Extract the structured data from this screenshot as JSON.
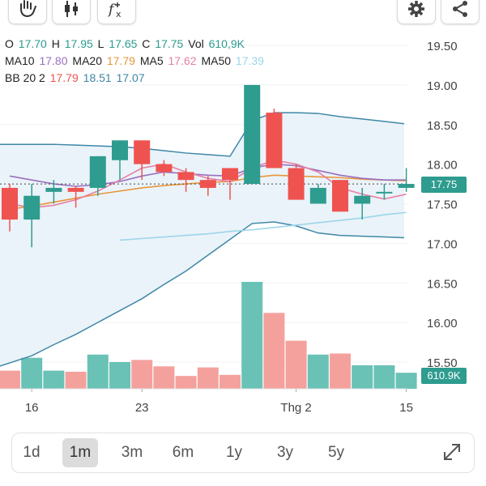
{
  "toolbar": {
    "left_icons": [
      "hand-icon",
      "candlestick-icon",
      "function-icon"
    ],
    "right_icons": [
      "gear-icon",
      "share-icon"
    ]
  },
  "legend": {
    "o_label": "O",
    "o_value": "17.70",
    "h_label": "H",
    "h_value": "17.95",
    "l_label": "L",
    "l_value": "17.65",
    "c_label": "C",
    "c_value": "17.75",
    "vol_label": "Vol",
    "vol_value": "610,9K",
    "ma10_label": "MA10",
    "ma10_value": "17.80",
    "ma20_label": "MA20",
    "ma20_value": "17.79",
    "ma5_label": "MA5",
    "ma5_value": "17.62",
    "ma50_label": "MA50",
    "ma50_value": "17.39",
    "bb_label": "BB 20 2",
    "bb_mid": "17.79",
    "bb_upper": "18.51",
    "bb_lower": "17.07"
  },
  "price_tag": "17.75",
  "volume_tag": "610.9K",
  "timeframes": [
    "1d",
    "1m",
    "3m",
    "6m",
    "1y",
    "3y",
    "5y"
  ],
  "active_timeframe": "1m",
  "colors": {
    "up": "#2e9c8f",
    "down": "#ef5350",
    "vol_up": "#69c2b5",
    "vol_down": "#f4a19d",
    "ma5": "#e77fa4",
    "ma10": "#9a6fbf",
    "ma20": "#e8963a",
    "ma50": "#9cd5ea",
    "bb_line": "#3f87a6",
    "bb_fill": "#eaf3f9"
  },
  "chart_data": {
    "type": "candlestick",
    "y_ticks": [
      "19.50",
      "19.00",
      "18.50",
      "18.00",
      "17.50",
      "17.00",
      "16.50",
      "16.00",
      "15.50"
    ],
    "ylim": [
      15.5,
      19.5
    ],
    "x_ticks": [
      {
        "label": "16",
        "index": 1
      },
      {
        "label": "23",
        "index": 6
      },
      {
        "label": "Thg 2",
        "index": 13
      },
      {
        "label": "15",
        "index": 18
      }
    ],
    "candles": [
      {
        "o": 17.7,
        "h": 17.75,
        "l": 17.15,
        "c": 17.3
      },
      {
        "o": 17.3,
        "h": 17.75,
        "l": 16.95,
        "c": 17.6
      },
      {
        "o": 17.65,
        "h": 17.8,
        "l": 17.5,
        "c": 17.7
      },
      {
        "o": 17.7,
        "h": 17.72,
        "l": 17.45,
        "c": 17.65
      },
      {
        "o": 17.7,
        "h": 18.1,
        "l": 17.6,
        "c": 18.1
      },
      {
        "o": 18.05,
        "h": 18.3,
        "l": 17.8,
        "c": 18.3
      },
      {
        "o": 18.3,
        "h": 18.3,
        "l": 17.8,
        "c": 18.0
      },
      {
        "o": 18.0,
        "h": 18.05,
        "l": 17.85,
        "c": 17.9
      },
      {
        "o": 17.9,
        "h": 17.95,
        "l": 17.65,
        "c": 17.8
      },
      {
        "o": 17.8,
        "h": 17.85,
        "l": 17.6,
        "c": 17.7
      },
      {
        "o": 17.95,
        "h": 17.95,
        "l": 17.55,
        "c": 17.8
      },
      {
        "o": 17.75,
        "h": 19.0,
        "l": 17.75,
        "c": 19.0
      },
      {
        "o": 18.65,
        "h": 18.7,
        "l": 17.95,
        "c": 17.95
      },
      {
        "o": 17.95,
        "h": 18.0,
        "l": 17.55,
        "c": 17.55
      },
      {
        "o": 17.5,
        "h": 17.75,
        "l": 17.5,
        "c": 17.7
      },
      {
        "o": 17.8,
        "h": 17.8,
        "l": 17.4,
        "c": 17.4
      },
      {
        "o": 17.5,
        "h": 17.7,
        "l": 17.3,
        "c": 17.6
      },
      {
        "o": 17.65,
        "h": 17.75,
        "l": 17.55,
        "c": 17.65
      },
      {
        "o": 17.7,
        "h": 17.95,
        "l": 17.65,
        "c": 17.75
      }
    ],
    "volume_relative": [
      0.17,
      0.29,
      0.17,
      0.16,
      0.32,
      0.25,
      0.27,
      0.21,
      0.12,
      0.2,
      0.13,
      1.0,
      0.71,
      0.45,
      0.32,
      0.33,
      0.22,
      0.22,
      0.15
    ],
    "ma5": [
      17.5,
      17.45,
      17.48,
      17.55,
      17.66,
      17.8,
      17.95,
      18.0,
      17.9,
      17.82,
      17.78,
      17.95,
      18.05,
      18.0,
      17.9,
      17.7,
      17.62,
      17.56,
      17.62
    ],
    "ma10": [
      17.85,
      17.8,
      17.75,
      17.72,
      17.74,
      17.78,
      17.85,
      17.9,
      17.88,
      17.86,
      17.85,
      17.95,
      18.0,
      17.98,
      17.92,
      17.86,
      17.82,
      17.8,
      17.8
    ],
    "ma20": [
      17.43,
      17.47,
      17.52,
      17.57,
      17.62,
      17.66,
      17.7,
      17.73,
      17.75,
      17.77,
      17.78,
      17.83,
      17.86,
      17.85,
      17.84,
      17.83,
      17.81,
      17.8,
      17.79
    ],
    "ma50": [
      null,
      null,
      null,
      null,
      null,
      17.04,
      17.06,
      17.08,
      17.1,
      17.12,
      17.15,
      17.17,
      17.2,
      17.23,
      17.26,
      17.29,
      17.32,
      17.36,
      17.39
    ],
    "bb_upper": [
      18.25,
      18.25,
      18.25,
      18.24,
      18.23,
      18.22,
      18.2,
      18.17,
      18.14,
      18.12,
      18.1,
      18.55,
      18.65,
      18.65,
      18.64,
      18.6,
      18.57,
      18.54,
      18.51
    ],
    "bb_lower": [
      15.45,
      15.58,
      15.72,
      15.85,
      16.0,
      16.15,
      16.3,
      16.48,
      16.65,
      16.85,
      17.05,
      17.25,
      17.27,
      17.22,
      17.13,
      17.1,
      17.09,
      17.08,
      17.07
    ]
  }
}
